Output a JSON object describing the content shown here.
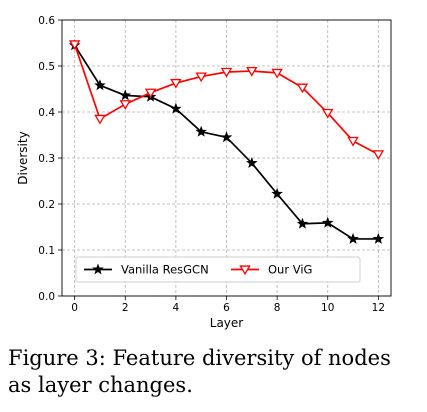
{
  "chart_data": {
    "type": "line",
    "xlabel": "Layer",
    "ylabel": "Diversity",
    "xlim": [
      -0.5,
      12.5
    ],
    "ylim": [
      0,
      0.6
    ],
    "xticks": [
      0,
      2,
      4,
      6,
      8,
      10,
      12
    ],
    "yticks": [
      0.0,
      0.1,
      0.2,
      0.3,
      0.4,
      0.5,
      0.6
    ],
    "x": [
      0,
      1,
      2,
      3,
      4,
      5,
      6,
      7,
      8,
      9,
      10,
      11,
      12
    ],
    "grid": true,
    "legend_position": "bottom-center",
    "series": [
      {
        "name": "Vanilla ResGCN",
        "color": "#000000",
        "marker": "star",
        "values": [
          0.545,
          0.458,
          0.436,
          0.433,
          0.407,
          0.357,
          0.345,
          0.289,
          0.222,
          0.157,
          0.159,
          0.124,
          0.124
        ]
      },
      {
        "name": "Our ViG",
        "color": "#ff0000",
        "marker": "triangle-down",
        "values": [
          0.547,
          0.385,
          0.417,
          0.442,
          0.463,
          0.477,
          0.487,
          0.489,
          0.485,
          0.453,
          0.398,
          0.337,
          0.308
        ]
      }
    ]
  },
  "caption": "Figure 3: Feature diversity of nodes as layer changes."
}
